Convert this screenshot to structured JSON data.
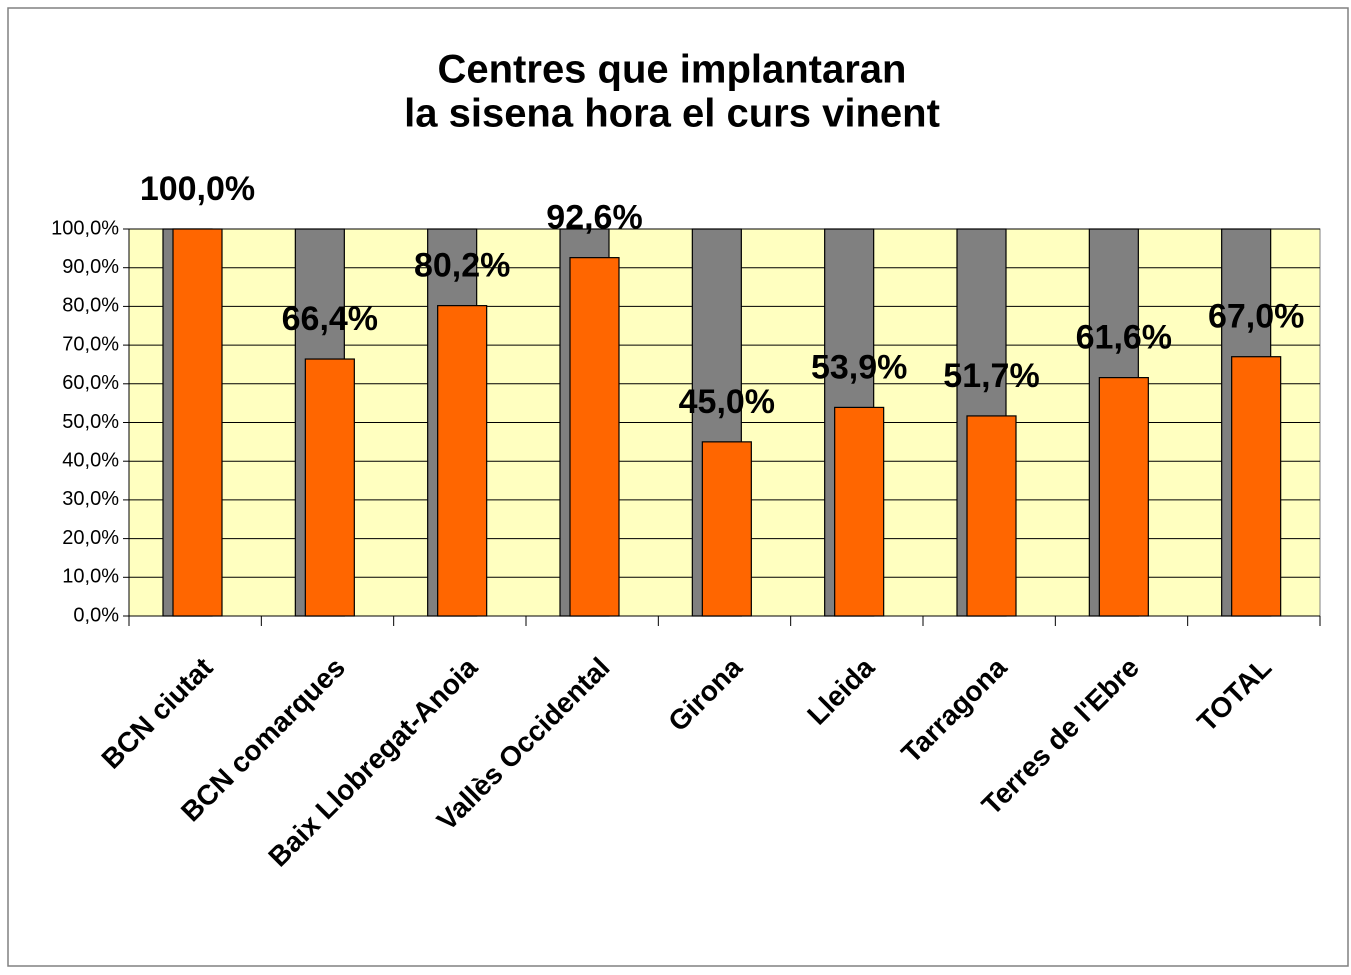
{
  "chart_data": {
    "type": "bar",
    "title": [
      "Centres que implantaran",
      "la sisena hora el curs vinent"
    ],
    "categories": [
      "BCN ciutat",
      "BCN comarques",
      "Baix Llobregat-Anoia",
      "Vallès Occidental",
      "Girona",
      "Lleida",
      "Tarragona",
      "Terres de l'Ebre",
      "TOTAL"
    ],
    "series": [
      {
        "color": "#808080",
        "values": [
          100,
          100,
          100,
          100,
          100,
          100,
          100,
          100,
          100
        ]
      },
      {
        "color": "#ff6600",
        "values": [
          100,
          66.4,
          80.2,
          92.6,
          45,
          53.9,
          51.7,
          61.6,
          67
        ],
        "value_labels": [
          "100,0%",
          "66,4%",
          "80,2%",
          "92,6%",
          "45,0%",
          "53,9%",
          "51,7%",
          "61,6%",
          "67,0%"
        ]
      }
    ],
    "ylim": [
      0,
      100
    ],
    "yticks": [
      {
        "value": 0,
        "label": "0,0%"
      },
      {
        "value": 10,
        "label": "10,0%"
      },
      {
        "value": 20,
        "label": "20,0%"
      },
      {
        "value": 30,
        "label": "30,0%"
      },
      {
        "value": 40,
        "label": "40,0%"
      },
      {
        "value": 50,
        "label": "50,0%"
      },
      {
        "value": 60,
        "label": "60,0%"
      },
      {
        "value": 70,
        "label": "70,0%"
      },
      {
        "value": 80,
        "label": "80,0%"
      },
      {
        "value": 90,
        "label": "90,0%"
      },
      {
        "value": 100,
        "label": "100,0%"
      }
    ],
    "grid": true,
    "plot_background": "#ffffc0"
  }
}
